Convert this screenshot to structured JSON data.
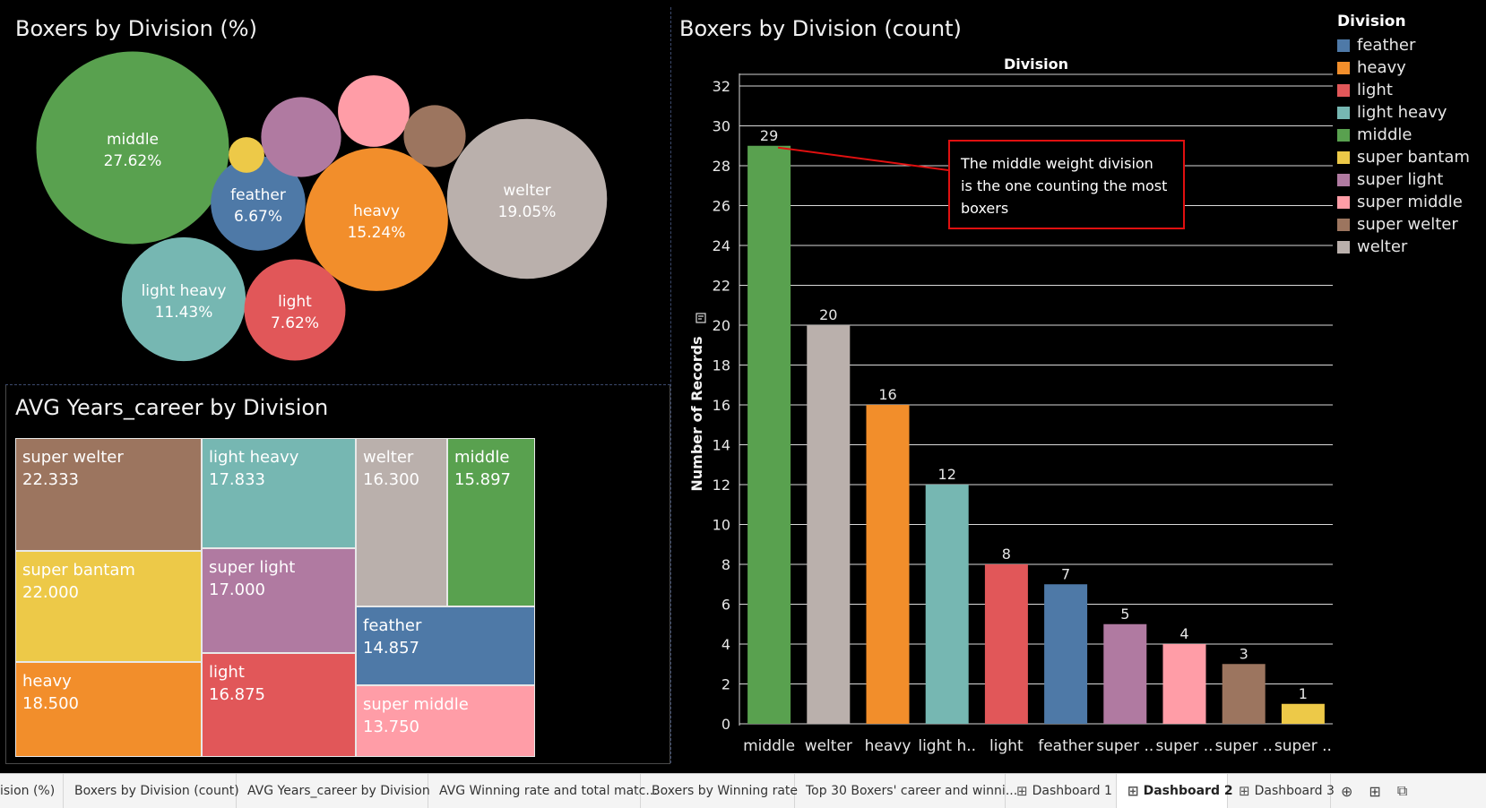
{
  "bubble_panel": {
    "title": "Boxers by Division (%)"
  },
  "treemap_panel": {
    "title": "AVG Years_career by Division"
  },
  "bar_panel": {
    "title": "Boxers by Division (count)",
    "header": "Division",
    "y_axis_label": "Number of Records",
    "sort_icon": "sort-icon",
    "annotation_lines": [
      "The middle weight division",
      "is the one counting the most",
      "boxers"
    ],
    "annotation_color": "#e01010"
  },
  "legend": {
    "title": "Division",
    "items": [
      {
        "label": "feather",
        "color": "#4e79a7"
      },
      {
        "label": "heavy",
        "color": "#f28e2b"
      },
      {
        "label": "light",
        "color": "#e15759"
      },
      {
        "label": "light heavy",
        "color": "#76b7b2"
      },
      {
        "label": "middle",
        "color": "#59a14f"
      },
      {
        "label": "super bantam",
        "color": "#edc948"
      },
      {
        "label": "super light",
        "color": "#b07aa1"
      },
      {
        "label": "super middle",
        "color": "#ff9da7"
      },
      {
        "label": "super welter",
        "color": "#9c755f"
      },
      {
        "label": "welter",
        "color": "#bab0ac"
      }
    ]
  },
  "chart_data": [
    {
      "type": "bubble",
      "title": "Boxers by Division (%)",
      "items": [
        {
          "name": "middle",
          "pct": 27.62,
          "label": "27.62%",
          "color": "#59a14f",
          "show_label": true
        },
        {
          "name": "welter",
          "pct": 19.05,
          "label": "19.05%",
          "color": "#bab0ac",
          "show_label": true
        },
        {
          "name": "heavy",
          "pct": 15.24,
          "label": "15.24%",
          "color": "#f28e2b",
          "show_label": true
        },
        {
          "name": "light heavy",
          "pct": 11.43,
          "label": "11.43%",
          "color": "#76b7b2",
          "show_label": true
        },
        {
          "name": "light",
          "pct": 7.62,
          "label": "7.62%",
          "color": "#e15759",
          "show_label": true
        },
        {
          "name": "feather",
          "pct": 6.67,
          "label": "6.67%",
          "color": "#4e79a7",
          "show_label": true
        },
        {
          "name": "super light",
          "pct": 4.76,
          "label": "",
          "color": "#b07aa1",
          "show_label": false
        },
        {
          "name": "super middle",
          "pct": 3.81,
          "label": "",
          "color": "#ff9da7",
          "show_label": false
        },
        {
          "name": "super welter",
          "pct": 2.86,
          "label": "",
          "color": "#9c755f",
          "show_label": false
        },
        {
          "name": "super bantam",
          "pct": 0.95,
          "label": "",
          "color": "#edc948",
          "show_label": false
        }
      ]
    },
    {
      "type": "treemap",
      "title": "AVG Years_career by Division",
      "items": [
        {
          "name": "super welter",
          "value": "22.333",
          "color": "#9c755f"
        },
        {
          "name": "super bantam",
          "value": "22.000",
          "color": "#edc948"
        },
        {
          "name": "heavy",
          "value": "18.500",
          "color": "#f28e2b"
        },
        {
          "name": "light heavy",
          "value": "17.833",
          "color": "#76b7b2"
        },
        {
          "name": "super light",
          "value": "17.000",
          "color": "#b07aa1"
        },
        {
          "name": "light",
          "value": "16.875",
          "color": "#e15759"
        },
        {
          "name": "welter",
          "value": "16.300",
          "color": "#bab0ac"
        },
        {
          "name": "middle",
          "value": "15.897",
          "color": "#59a14f"
        },
        {
          "name": "feather",
          "value": "14.857",
          "color": "#4e79a7"
        },
        {
          "name": "super middle",
          "value": "13.750",
          "color": "#ff9da7"
        }
      ]
    },
    {
      "type": "bar",
      "title": "Boxers by Division (count)",
      "xlabel": "Division",
      "ylabel": "Number of Records",
      "ylim": [
        0,
        32
      ],
      "yticks": [
        0,
        2,
        4,
        6,
        8,
        10,
        12,
        14,
        16,
        18,
        20,
        22,
        24,
        26,
        28,
        30,
        32
      ],
      "grid": true,
      "legend_position": "right",
      "categories": [
        "middle",
        "welter",
        "heavy",
        "light h..",
        "light",
        "feather",
        "super ..",
        "super ..",
        "super ..",
        "super .."
      ],
      "values": [
        29,
        20,
        16,
        12,
        8,
        7,
        5,
        4,
        3,
        1
      ],
      "colors": [
        "#59a14f",
        "#bab0ac",
        "#f28e2b",
        "#76b7b2",
        "#e15759",
        "#4e79a7",
        "#b07aa1",
        "#ff9da7",
        "#9c755f",
        "#edc948"
      ]
    }
  ],
  "tabs": [
    {
      "label": "ision (%)",
      "active": false,
      "dashboard": false
    },
    {
      "label": "Boxers by Division (count)",
      "active": false,
      "dashboard": false
    },
    {
      "label": "AVG Years_career by Division",
      "active": false,
      "dashboard": false
    },
    {
      "label": "AVG Winning rate and total matc...",
      "active": false,
      "dashboard": false
    },
    {
      "label": "Boxers by Winning rate",
      "active": false,
      "dashboard": false
    },
    {
      "label": "Top 30 Boxers' career and winni...",
      "active": false,
      "dashboard": false
    },
    {
      "label": "Dashboard 1",
      "active": false,
      "dashboard": true
    },
    {
      "label": "Dashboard 2",
      "active": true,
      "dashboard": true
    },
    {
      "label": "Dashboard 3",
      "active": false,
      "dashboard": true
    }
  ],
  "tab_tools": [
    "new-worksheet-icon",
    "new-dashboard-icon",
    "new-story-icon"
  ]
}
